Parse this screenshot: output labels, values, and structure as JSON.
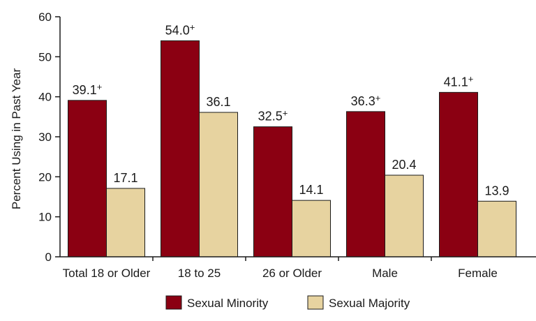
{
  "chart_data": {
    "type": "bar",
    "ylabel": "Percent Using in Past Year",
    "ylim": [
      0,
      60
    ],
    "yticks": [
      0,
      10,
      20,
      30,
      40,
      50,
      60
    ],
    "grid": false,
    "legend_position": "bottom",
    "categories": [
      "Total 18 or Older",
      "18 to 25",
      "26 or Older",
      "Male",
      "Female"
    ],
    "series": [
      {
        "name": "Sexual Minority",
        "color": "#8b0012",
        "values": [
          39.1,
          54.0,
          32.5,
          36.3,
          41.1
        ],
        "labels": [
          "39.1",
          "54.0",
          "32.5",
          "36.3",
          "41.1"
        ],
        "marker": "+"
      },
      {
        "name": "Sexual Majority",
        "color": "#e7d3a0",
        "values": [
          17.1,
          36.1,
          14.1,
          20.4,
          13.9
        ],
        "labels": [
          "17.1",
          "36.1",
          "14.1",
          "20.4",
          "13.9"
        ],
        "marker": ""
      }
    ]
  }
}
